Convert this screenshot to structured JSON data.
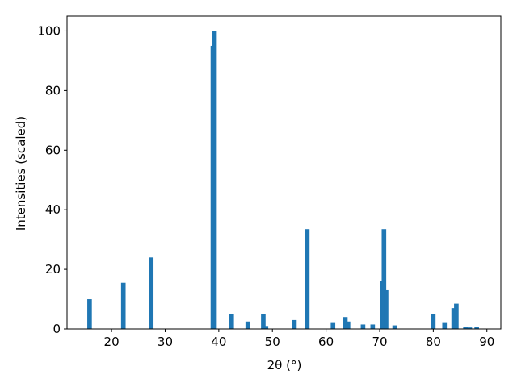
{
  "chart_data": {
    "type": "bar",
    "xlabel": "2θ (°)",
    "ylabel": "Intensities (scaled)",
    "x": [
      15.9,
      22.2,
      27.4,
      38.9,
      39.2,
      42.4,
      45.4,
      48.3,
      48.8,
      54.1,
      56.5,
      61.3,
      63.6,
      64.1,
      66.9,
      68.7,
      70.5,
      70.8,
      71.2,
      72.8,
      80.0,
      82.1,
      83.8,
      84.3,
      86.0,
      86.8,
      88.1
    ],
    "values": [
      10,
      15.5,
      24,
      95,
      100,
      5,
      2.5,
      5,
      1,
      3,
      33.5,
      2,
      4,
      2.5,
      1.5,
      1.5,
      16,
      33.5,
      13,
      1.2,
      5,
      2,
      7,
      8.5,
      0.7,
      0.5,
      0.6
    ],
    "color": "#1f77b4",
    "bar_width": 0.85,
    "xlim": [
      11.7,
      92.6
    ],
    "xticks": [
      20,
      30,
      40,
      50,
      60,
      70,
      80,
      90
    ],
    "ylim": [
      0,
      105
    ],
    "yticks": [
      0,
      20,
      40,
      60,
      80,
      100
    ]
  }
}
